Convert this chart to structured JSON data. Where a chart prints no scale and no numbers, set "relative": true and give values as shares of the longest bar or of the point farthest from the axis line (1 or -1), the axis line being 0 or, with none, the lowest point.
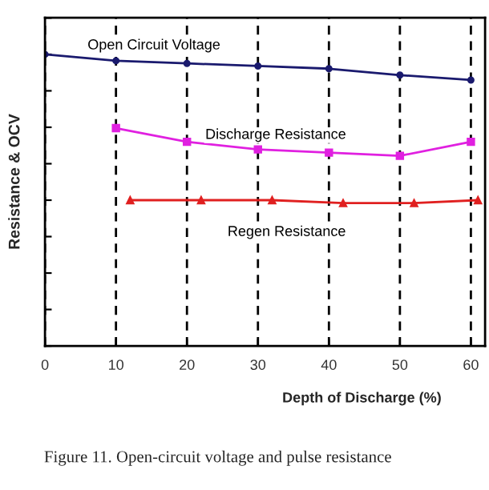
{
  "chart_data": {
    "type": "line",
    "title": "Figure 11. Open-circuit voltage and pulse resistance",
    "xlabel": "Depth of Discharge (%)",
    "ylabel": "Resistance & OCV",
    "relative": true,
    "xlim": [
      0,
      62
    ],
    "xticks": [
      0,
      10,
      20,
      30,
      40,
      50,
      60
    ],
    "tick_labels": "x",
    "grid": "x",
    "legend": false,
    "series": [
      {
        "name": "Open Circuit Voltage",
        "color": "#1a1a6e",
        "marker": "circle",
        "x": [
          0,
          10,
          20,
          30,
          40,
          50,
          60
        ],
        "values": [
          1.0,
          0.978,
          0.969,
          0.96,
          0.951,
          0.929,
          0.912
        ]
      },
      {
        "name": "Discharge Resistance",
        "color": "#e020e0",
        "marker": "square",
        "x": [
          10,
          20,
          30,
          40,
          50,
          60
        ],
        "values": [
          0.747,
          0.7,
          0.674,
          0.663,
          0.652,
          0.7
        ]
      },
      {
        "name": "Regen Resistance",
        "color": "#e02020",
        "marker": "triangle",
        "x": [
          12,
          22,
          32,
          42,
          52,
          61
        ],
        "values": [
          0.5,
          0.5,
          0.5,
          0.49,
          0.49,
          0.5
        ]
      }
    ]
  }
}
